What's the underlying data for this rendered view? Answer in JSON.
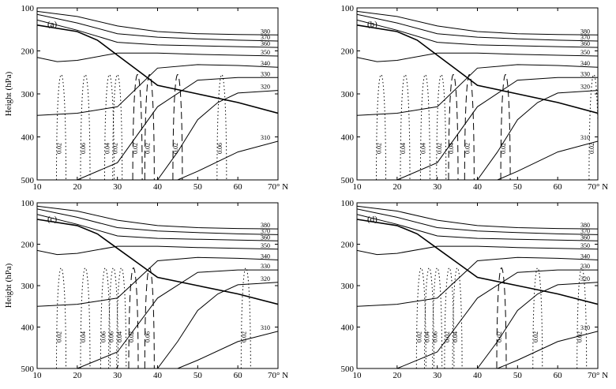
{
  "figure": {
    "y_axis_label": "Height (hPa)",
    "x_ticks": [
      "10",
      "20",
      "30",
      "40",
      "50",
      "60",
      "70° N"
    ],
    "y_ticks": [
      "100",
      "200",
      "300",
      "400",
      "500"
    ]
  },
  "chart_data": [
    {
      "type": "line",
      "panel_label": "(a)",
      "xlabel": "",
      "ylabel": "Height (hPa)",
      "xlim": [
        10,
        70
      ],
      "ylim": [
        500,
        100
      ],
      "theta_contours": [
        {
          "label": "380",
          "x": [
            10,
            20,
            30,
            40,
            50,
            60,
            70
          ],
          "y": [
            108,
            120,
            142,
            155,
            160,
            162,
            163
          ]
        },
        {
          "label": "370",
          "x": [
            10,
            20,
            30,
            40,
            50,
            60,
            70
          ],
          "y": [
            115,
            135,
            160,
            168,
            172,
            175,
            177
          ]
        },
        {
          "label": "360",
          "x": [
            10,
            20,
            30,
            40,
            50,
            60,
            70
          ],
          "y": [
            128,
            152,
            180,
            186,
            188,
            190,
            192
          ]
        },
        {
          "label": "350",
          "x": [
            10,
            15,
            20,
            30,
            40,
            50,
            60,
            70
          ],
          "y": [
            215,
            225,
            222,
            205,
            205,
            208,
            210,
            212
          ]
        },
        {
          "label": "340",
          "x": [
            10,
            20,
            30,
            40,
            50,
            60,
            70
          ],
          "y": [
            350,
            345,
            330,
            240,
            232,
            234,
            238
          ]
        },
        {
          "label": "330",
          "x": [
            20,
            30,
            40,
            50,
            60,
            70
          ],
          "y": [
            500,
            460,
            330,
            268,
            262,
            262
          ]
        },
        {
          "label": "320",
          "x": [
            40,
            45,
            50,
            55,
            60,
            65,
            70
          ],
          "y": [
            500,
            435,
            360,
            320,
            298,
            295,
            292
          ]
        },
        {
          "label": "310",
          "x": [
            45,
            50,
            60,
            70
          ],
          "y": [
            500,
            480,
            435,
            410
          ]
        }
      ],
      "tropopause": {
        "x": [
          10,
          20,
          25,
          30,
          35,
          40,
          50,
          60,
          70
        ],
        "y": [
          140,
          155,
          175,
          210,
          245,
          280,
          300,
          320,
          345
        ]
      },
      "omega_values": [
        "0.02",
        "0.06",
        "0.04",
        "0.02",
        "0.02",
        "0.02",
        "0.06",
        "0.02"
      ]
    },
    {
      "type": "line",
      "panel_label": "(b)",
      "xlabel": "",
      "ylabel": "",
      "xlim": [
        10,
        70
      ],
      "ylim": [
        500,
        100
      ],
      "theta_contours": [
        {
          "label": "380",
          "x": [
            10,
            20,
            30,
            40,
            50,
            60,
            70
          ],
          "y": [
            108,
            120,
            142,
            155,
            160,
            162,
            163
          ]
        },
        {
          "label": "370",
          "x": [
            10,
            20,
            30,
            40,
            50,
            60,
            70
          ],
          "y": [
            115,
            135,
            160,
            168,
            172,
            175,
            177
          ]
        },
        {
          "label": "360",
          "x": [
            10,
            20,
            30,
            40,
            50,
            60,
            70
          ],
          "y": [
            128,
            152,
            180,
            186,
            188,
            190,
            192
          ]
        },
        {
          "label": "350",
          "x": [
            10,
            15,
            20,
            30,
            40,
            50,
            60,
            70
          ],
          "y": [
            215,
            225,
            222,
            205,
            205,
            208,
            210,
            212
          ]
        },
        {
          "label": "340",
          "x": [
            10,
            20,
            30,
            40,
            50,
            60,
            70
          ],
          "y": [
            350,
            345,
            330,
            240,
            232,
            234,
            238
          ]
        },
        {
          "label": "330",
          "x": [
            20,
            30,
            40,
            50,
            60,
            70
          ],
          "y": [
            500,
            460,
            330,
            268,
            262,
            262
          ]
        },
        {
          "label": "320",
          "x": [
            40,
            45,
            50,
            55,
            60,
            65,
            70
          ],
          "y": [
            500,
            435,
            360,
            320,
            298,
            295,
            292
          ]
        },
        {
          "label": "310",
          "x": [
            45,
            50,
            60,
            70
          ],
          "y": [
            500,
            480,
            435,
            410
          ]
        }
      ],
      "tropopause": {
        "x": [
          10,
          20,
          25,
          30,
          35,
          40,
          50,
          60,
          70
        ],
        "y": [
          140,
          155,
          175,
          210,
          245,
          280,
          300,
          320,
          345
        ]
      },
      "omega_values": [
        "0.02",
        "0.04",
        "0.04",
        "0.02",
        "0.04",
        "0.02",
        "0.02",
        "0.02"
      ]
    },
    {
      "type": "line",
      "panel_label": "(c)",
      "xlabel": "",
      "ylabel": "Height (hPa)",
      "xlim": [
        10,
        70
      ],
      "ylim": [
        500,
        100
      ],
      "theta_contours": [
        {
          "label": "380",
          "x": [
            10,
            20,
            30,
            40,
            50,
            60,
            70
          ],
          "y": [
            108,
            120,
            142,
            155,
            160,
            162,
            163
          ]
        },
        {
          "label": "370",
          "x": [
            10,
            20,
            30,
            40,
            50,
            60,
            70
          ],
          "y": [
            115,
            135,
            160,
            168,
            172,
            175,
            177
          ]
        },
        {
          "label": "360",
          "x": [
            10,
            20,
            30,
            40,
            50,
            60,
            70
          ],
          "y": [
            128,
            152,
            180,
            186,
            188,
            190,
            192
          ]
        },
        {
          "label": "350",
          "x": [
            10,
            15,
            20,
            30,
            40,
            50,
            60,
            70
          ],
          "y": [
            215,
            225,
            222,
            205,
            205,
            208,
            210,
            212
          ]
        },
        {
          "label": "340",
          "x": [
            10,
            20,
            30,
            40,
            50,
            60,
            70
          ],
          "y": [
            350,
            345,
            330,
            240,
            232,
            234,
            238
          ]
        },
        {
          "label": "330",
          "x": [
            20,
            30,
            40,
            50,
            60,
            70
          ],
          "y": [
            500,
            460,
            330,
            268,
            262,
            262
          ]
        },
        {
          "label": "320",
          "x": [
            40,
            45,
            50,
            55,
            60,
            65,
            70
          ],
          "y": [
            500,
            435,
            360,
            320,
            298,
            295,
            292
          ]
        },
        {
          "label": "310",
          "x": [
            45,
            50,
            60,
            70
          ],
          "y": [
            500,
            480,
            435,
            410
          ]
        }
      ],
      "tropopause": {
        "x": [
          10,
          20,
          25,
          30,
          35,
          40,
          50,
          60,
          70
        ],
        "y": [
          140,
          155,
          175,
          210,
          245,
          280,
          300,
          320,
          345
        ]
      },
      "omega_values": [
        "0.02",
        "0.04",
        "0.06",
        "0.06",
        "0.04",
        "0.02",
        "0.06",
        "0.02"
      ]
    },
    {
      "type": "line",
      "panel_label": "(d)",
      "xlabel": "",
      "ylabel": "",
      "xlim": [
        10,
        70
      ],
      "ylim": [
        500,
        100
      ],
      "theta_contours": [
        {
          "label": "380",
          "x": [
            10,
            20,
            30,
            40,
            50,
            60,
            70
          ],
          "y": [
            108,
            120,
            142,
            155,
            160,
            162,
            163
          ]
        },
        {
          "label": "370",
          "x": [
            10,
            20,
            30,
            40,
            50,
            60,
            70
          ],
          "y": [
            115,
            135,
            160,
            168,
            172,
            175,
            177
          ]
        },
        {
          "label": "360",
          "x": [
            10,
            20,
            30,
            40,
            50,
            60,
            70
          ],
          "y": [
            128,
            152,
            180,
            186,
            188,
            190,
            192
          ]
        },
        {
          "label": "350",
          "x": [
            10,
            15,
            20,
            30,
            40,
            50,
            60,
            70
          ],
          "y": [
            215,
            225,
            222,
            205,
            205,
            208,
            210,
            212
          ]
        },
        {
          "label": "340",
          "x": [
            10,
            20,
            30,
            40,
            50,
            60,
            70
          ],
          "y": [
            350,
            345,
            330,
            240,
            232,
            234,
            238
          ]
        },
        {
          "label": "330",
          "x": [
            20,
            30,
            40,
            50,
            60,
            70
          ],
          "y": [
            500,
            460,
            330,
            268,
            262,
            262
          ]
        },
        {
          "label": "320",
          "x": [
            40,
            45,
            50,
            55,
            60,
            65,
            70
          ],
          "y": [
            500,
            435,
            360,
            320,
            298,
            295,
            292
          ]
        },
        {
          "label": "310",
          "x": [
            45,
            50,
            60,
            70
          ],
          "y": [
            500,
            480,
            435,
            410
          ]
        }
      ],
      "tropopause": {
        "x": [
          10,
          20,
          25,
          30,
          35,
          40,
          50,
          60,
          70
        ],
        "y": [
          140,
          155,
          175,
          210,
          245,
          280,
          300,
          320,
          345
        ]
      },
      "omega_values": [
        "0.02",
        "0.04",
        "0.06",
        "0.02",
        "0.04",
        "0.02",
        "0.02",
        "0.02"
      ]
    }
  ]
}
